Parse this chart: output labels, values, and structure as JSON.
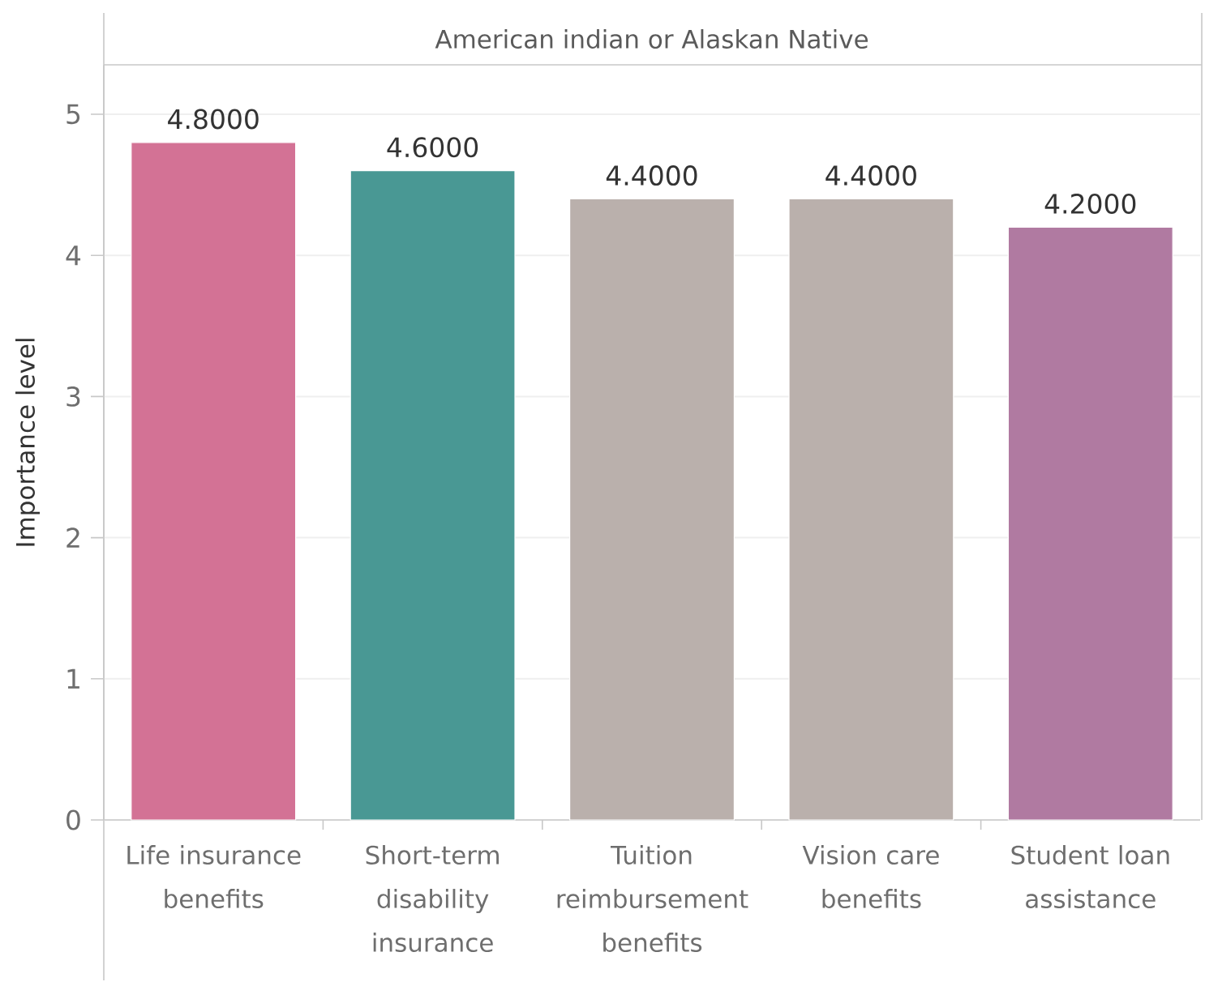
{
  "chart_data": {
    "type": "bar",
    "title": "American indian or Alaskan Native",
    "ylabel": "Importance level",
    "categories": [
      "Life insurance benefits",
      "Short-term disability insurance",
      "Tuition reimbursement benefits",
      "Vision care benefits",
      "Student loan assistance"
    ],
    "values": [
      4.8,
      4.6,
      4.4,
      4.4,
      4.2
    ],
    "colors": [
      "#d37295",
      "#499894",
      "#bab0ac",
      "#bab0ac",
      "#b07aa1"
    ],
    "value_labels": [
      "4.8000",
      "4.6000",
      "4.4000",
      "4.4000",
      "4.2000"
    ],
    "ylim": [
      0,
      5.35
    ],
    "yticks": [
      0,
      1,
      2,
      3,
      4,
      5
    ],
    "grid": "y"
  }
}
